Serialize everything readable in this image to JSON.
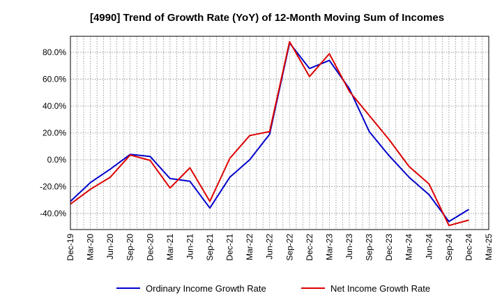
{
  "chart_data": {
    "type": "line",
    "title": "[4990]  Trend of Growth Rate (YoY) of 12-Month Moving Sum of Incomes",
    "xlabel": "",
    "ylabel": "",
    "ylim": [
      -52,
      92
    ],
    "y_ticks": [
      -40,
      -20,
      0,
      20,
      40,
      60,
      80
    ],
    "y_tick_labels": [
      "-40.0%",
      "-20.0%",
      "0.0%",
      "20.0%",
      "40.0%",
      "60.0%",
      "80.0%"
    ],
    "x_tick_labels": [
      "Dec-19",
      "Mar-20",
      "Jun-20",
      "Sep-20",
      "Dec-20",
      "Mar-21",
      "Jun-21",
      "Sep-21",
      "Dec-21",
      "Mar-22",
      "Jun-22",
      "Sep-22",
      "Dec-22",
      "Mar-23",
      "Jun-23",
      "Sep-23",
      "Dec-23",
      "Mar-24",
      "Jun-24",
      "Sep-24",
      "Dec-24",
      "Mar-25"
    ],
    "x": [
      "Dec-19",
      "Mar-20",
      "Jun-20",
      "Sep-20",
      "Dec-20",
      "Mar-21",
      "Jun-21",
      "Sep-21",
      "Dec-21",
      "Mar-22",
      "Jun-22",
      "Sep-22",
      "Dec-22",
      "Mar-23",
      "Jun-23",
      "Sep-23",
      "Dec-23",
      "Mar-24",
      "Jun-24",
      "Sep-24",
      "Dec-24"
    ],
    "grid": true,
    "legend_position": "bottom",
    "series": [
      {
        "name": "Ordinary Income Growth Rate",
        "color": "#0000cc",
        "values": [
          -31,
          -17,
          -7,
          4,
          2.5,
          -14,
          -16,
          -36,
          -13,
          0,
          19,
          87,
          68,
          74,
          53,
          21,
          3,
          -13,
          -26,
          -46,
          -37
        ]
      },
      {
        "name": "Net Income Growth Rate",
        "color": "#dd0000",
        "values": [
          -33,
          -22,
          -13,
          3.5,
          -0.5,
          -21,
          -6,
          -31,
          1,
          18,
          21,
          88,
          62,
          79,
          51,
          33,
          15,
          -5,
          -18,
          -49,
          -45
        ]
      }
    ]
  }
}
